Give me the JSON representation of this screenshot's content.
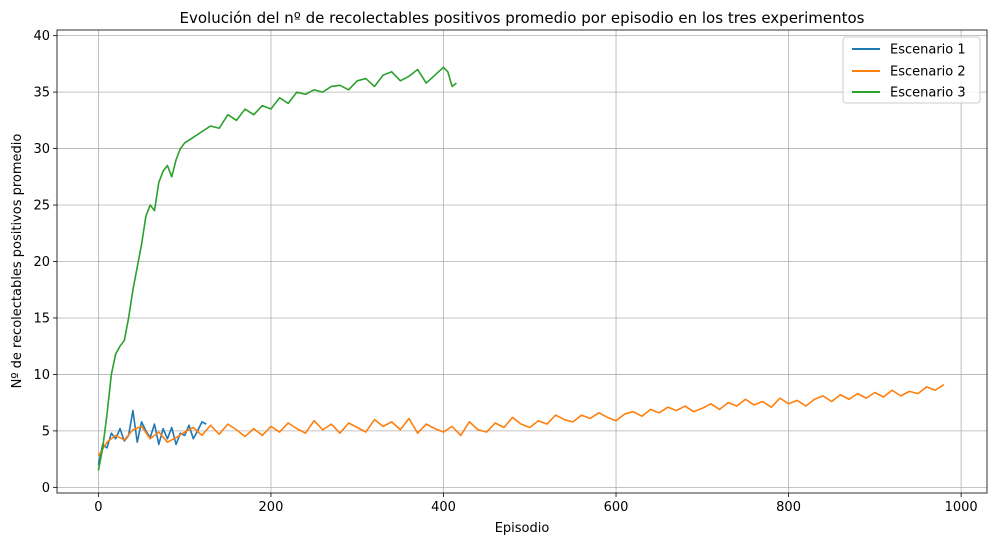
{
  "chart_data": {
    "type": "line",
    "title": "Evolución del nº de recolectables positivos promedio por episodio en los tres experimentos",
    "xlabel": "Episodio",
    "ylabel": "Nº de recolectables positivos promedio",
    "xlim": [
      -48,
      1030
    ],
    "ylim": [
      -0.5,
      40.5
    ],
    "xticks": [
      0,
      200,
      400,
      600,
      800,
      1000
    ],
    "yticks": [
      0,
      5,
      10,
      15,
      20,
      25,
      30,
      35,
      40
    ],
    "grid": true,
    "legend_position": "top-right",
    "series": [
      {
        "name": "Escenario 1",
        "color": "#1f77b4",
        "x": [
          0,
          5,
          10,
          15,
          20,
          25,
          30,
          35,
          40,
          45,
          50,
          55,
          60,
          65,
          70,
          75,
          80,
          85,
          90,
          95,
          100,
          105,
          110,
          115,
          120,
          125
        ],
        "y": [
          2.0,
          3.8,
          3.5,
          4.8,
          4.3,
          5.2,
          4.1,
          4.6,
          6.8,
          4.0,
          5.8,
          5.0,
          4.4,
          5.6,
          3.8,
          5.2,
          4.3,
          5.3,
          3.8,
          4.8,
          4.6,
          5.5,
          4.3,
          5.0,
          5.8,
          5.6
        ]
      },
      {
        "name": "Escenario 2",
        "color": "#ff7f0e",
        "x": [
          0,
          10,
          20,
          30,
          40,
          50,
          60,
          70,
          80,
          90,
          100,
          110,
          120,
          130,
          140,
          150,
          160,
          170,
          180,
          190,
          200,
          210,
          220,
          230,
          240,
          250,
          260,
          270,
          280,
          290,
          300,
          310,
          320,
          330,
          340,
          350,
          360,
          370,
          380,
          390,
          400,
          410,
          420,
          430,
          440,
          450,
          460,
          470,
          480,
          490,
          500,
          510,
          520,
          530,
          540,
          550,
          560,
          570,
          580,
          590,
          600,
          610,
          620,
          630,
          640,
          650,
          660,
          670,
          680,
          690,
          700,
          710,
          720,
          730,
          740,
          750,
          760,
          770,
          780,
          790,
          800,
          810,
          820,
          830,
          840,
          850,
          860,
          870,
          880,
          890,
          900,
          910,
          920,
          930,
          940,
          950,
          960,
          970,
          980
        ],
        "y": [
          2.8,
          4.0,
          4.6,
          4.2,
          5.1,
          5.4,
          4.3,
          4.9,
          4.0,
          4.4,
          4.9,
          5.3,
          4.6,
          5.5,
          4.7,
          5.6,
          5.1,
          4.5,
          5.2,
          4.6,
          5.4,
          4.9,
          5.7,
          5.2,
          4.8,
          5.9,
          5.1,
          5.6,
          4.8,
          5.7,
          5.3,
          4.9,
          6.0,
          5.4,
          5.8,
          5.1,
          6.1,
          4.8,
          5.6,
          5.2,
          4.9,
          5.4,
          4.6,
          5.8,
          5.1,
          4.9,
          5.7,
          5.3,
          6.2,
          5.6,
          5.3,
          5.9,
          5.6,
          6.4,
          6.0,
          5.8,
          6.4,
          6.1,
          6.6,
          6.2,
          5.9,
          6.5,
          6.7,
          6.3,
          6.9,
          6.6,
          7.1,
          6.8,
          7.2,
          6.7,
          7.0,
          7.4,
          6.9,
          7.5,
          7.2,
          7.8,
          7.3,
          7.6,
          7.1,
          7.9,
          7.4,
          7.7,
          7.2,
          7.8,
          8.1,
          7.6,
          8.2,
          7.8,
          8.3,
          7.9,
          8.4,
          8.0,
          8.6,
          8.1,
          8.5,
          8.3,
          8.9,
          8.6,
          9.1
        ]
      },
      {
        "name": "Escenario 3",
        "color": "#2ca02c",
        "x": [
          0,
          5,
          10,
          15,
          20,
          25,
          30,
          35,
          40,
          45,
          50,
          55,
          60,
          65,
          70,
          75,
          80,
          85,
          90,
          95,
          100,
          110,
          120,
          130,
          140,
          150,
          160,
          170,
          180,
          190,
          200,
          210,
          220,
          230,
          240,
          250,
          260,
          270,
          280,
          290,
          300,
          310,
          320,
          330,
          340,
          350,
          360,
          370,
          380,
          390,
          400,
          405,
          410,
          415
        ],
        "y": [
          1.5,
          3.5,
          6.5,
          10.0,
          11.8,
          12.5,
          13.0,
          15.0,
          17.5,
          19.5,
          21.5,
          24.0,
          25.0,
          24.5,
          27.0,
          28.0,
          28.5,
          27.5,
          29.0,
          30.0,
          30.5,
          31.0,
          31.5,
          32.0,
          31.8,
          33.0,
          32.5,
          33.5,
          33.0,
          33.8,
          33.5,
          34.5,
          34.0,
          35.0,
          34.8,
          35.2,
          35.0,
          35.5,
          35.6,
          35.2,
          36.0,
          36.2,
          35.5,
          36.5,
          36.8,
          36.0,
          36.4,
          37.0,
          35.8,
          36.5,
          37.2,
          36.8,
          35.5,
          35.8
        ]
      }
    ]
  }
}
